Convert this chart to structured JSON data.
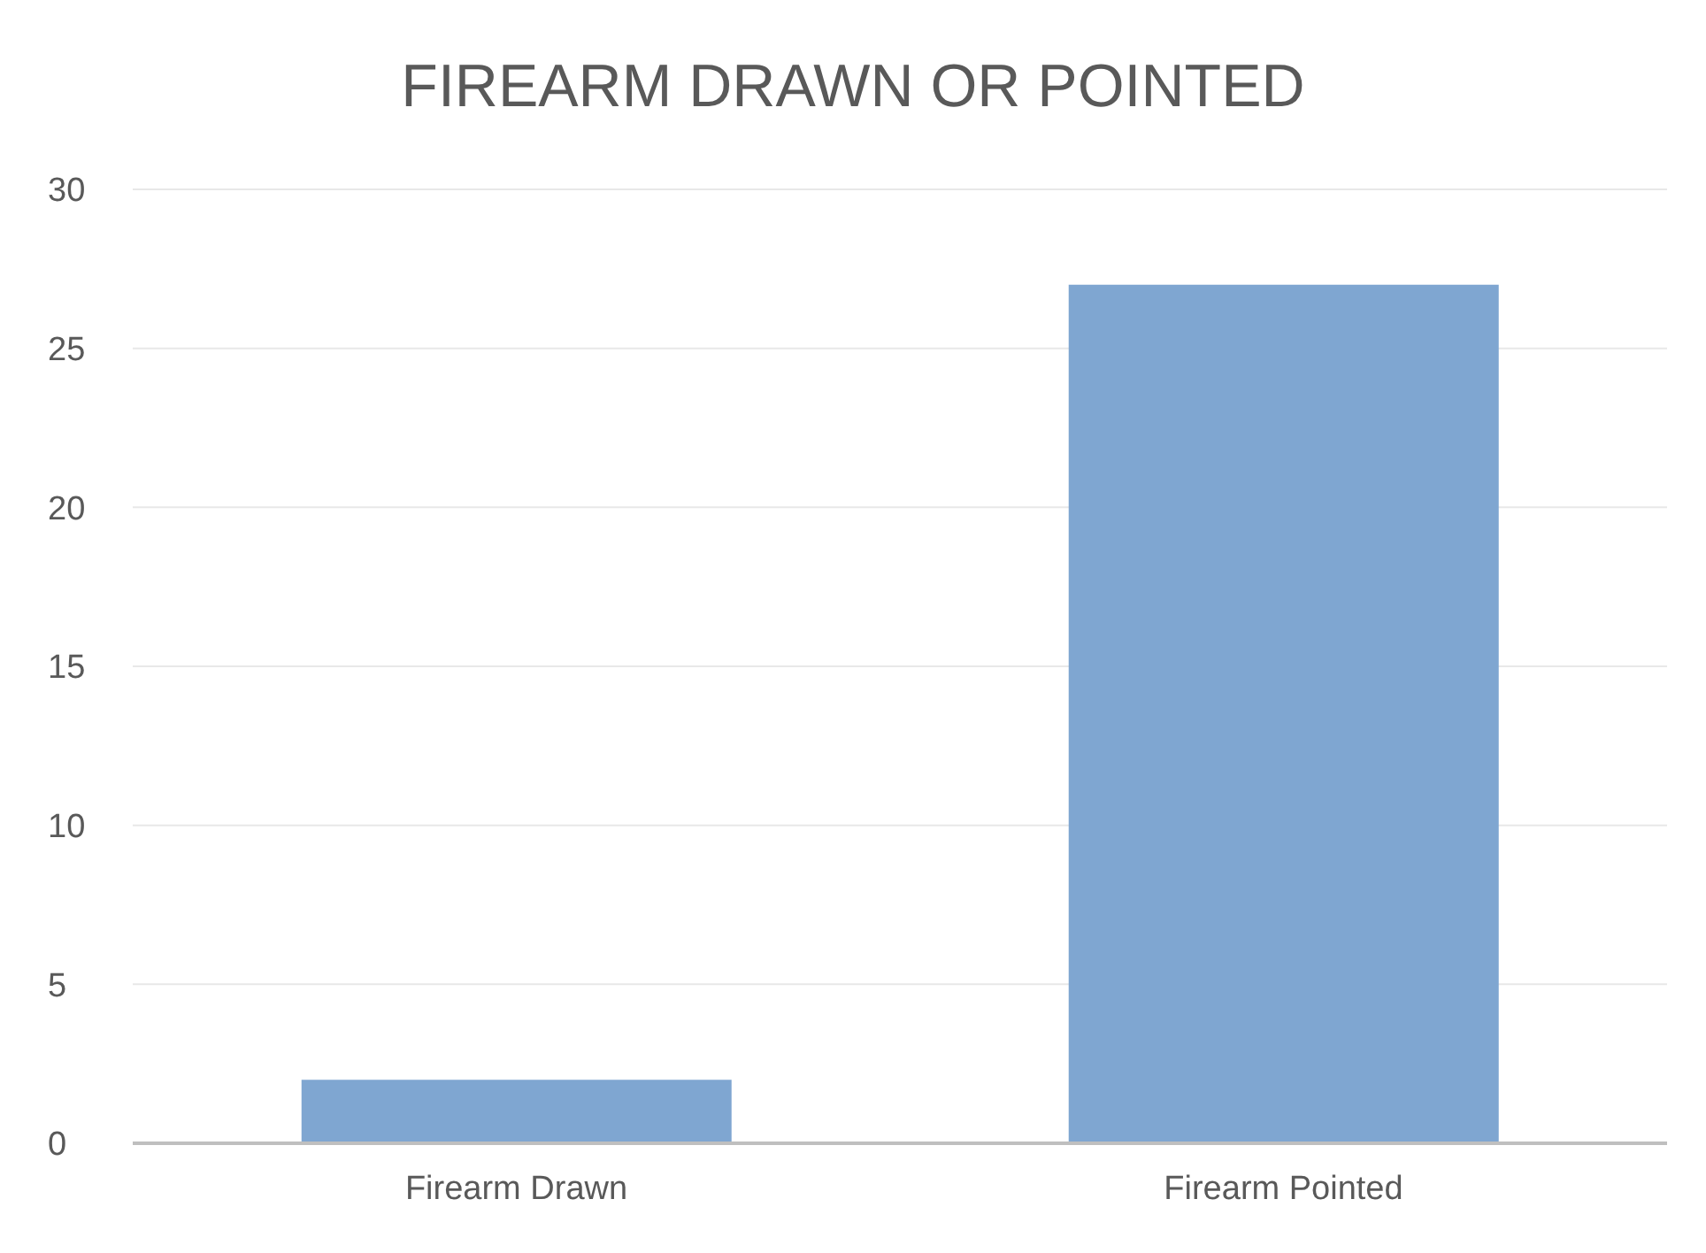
{
  "chart_data": {
    "type": "bar",
    "title": "FIREARM DRAWN OR POINTED",
    "categories": [
      "Firearm Drawn",
      "Firearm Pointed"
    ],
    "values": [
      2,
      27
    ],
    "color": "#7fa6d1",
    "ylim": [
      0,
      30
    ],
    "yticks": [
      0,
      5,
      10,
      15,
      20,
      25,
      30
    ],
    "grid": "y"
  }
}
